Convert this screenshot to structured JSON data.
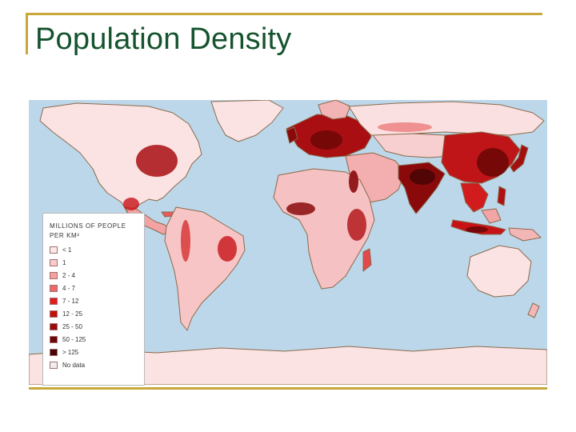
{
  "slide": {
    "title": "Population Density"
  },
  "map": {
    "ocean_color": "#bdd7ea",
    "land_base_color": "#fbe3e4",
    "border_color": "#8a6a4a"
  },
  "legend": {
    "title_line1": "MILLIONS OF PEOPLE",
    "title_line2": "PER KM²",
    "items": [
      {
        "label": "< 1",
        "color": "#fde9ea"
      },
      {
        "label": "1",
        "color": "#fbcaca"
      },
      {
        "label": "2 - 4",
        "color": "#f6a0a0"
      },
      {
        "label": "4 - 7",
        "color": "#ee6a6a"
      },
      {
        "label": "7 - 12",
        "color": "#e01d1d"
      },
      {
        "label": "12 - 25",
        "color": "#c40d0d"
      },
      {
        "label": "25 - 50",
        "color": "#9a0a0a"
      },
      {
        "label": "50 - 125",
        "color": "#6e0707"
      },
      {
        "label": "> 125",
        "color": "#4a0404"
      },
      {
        "label": "No data",
        "color": "#eeeeee"
      }
    ]
  }
}
